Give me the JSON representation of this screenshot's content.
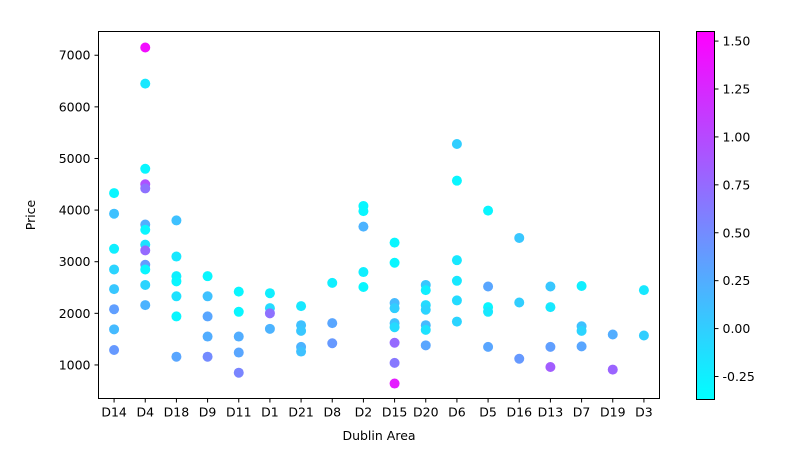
{
  "chart_data": {
    "type": "scatter",
    "title": "",
    "xlabel": "Dublin Area",
    "ylabel": "Price",
    "categories": [
      "D14",
      "D4",
      "D18",
      "D9",
      "D11",
      "D1",
      "D21",
      "D8",
      "D2",
      "D15",
      "D20",
      "D6",
      "D5",
      "D16",
      "D13",
      "D7",
      "D19",
      "D3"
    ],
    "yticks": [
      1000,
      2000,
      3000,
      4000,
      5000,
      6000,
      7000
    ],
    "ylim": [
      350,
      7460
    ],
    "grid": false,
    "colorbar": {
      "colormap": "cool",
      "min": -0.37,
      "max": 1.55,
      "ticks": [
        "-0.25",
        "0.00",
        "0.25",
        "0.50",
        "0.75",
        "1.00",
        "1.25",
        "1.50"
      ],
      "tick_values": [
        -0.25,
        0.0,
        0.25,
        0.5,
        0.75,
        1.0,
        1.25,
        1.5
      ]
    },
    "points": [
      {
        "x": "D14",
        "y": 4330,
        "c": -0.3
      },
      {
        "x": "D14",
        "y": 3930,
        "c": 0.1
      },
      {
        "x": "D14",
        "y": 3250,
        "c": -0.25
      },
      {
        "x": "D14",
        "y": 2850,
        "c": -0.05
      },
      {
        "x": "D14",
        "y": 2470,
        "c": 0.05
      },
      {
        "x": "D14",
        "y": 2080,
        "c": 0.35
      },
      {
        "x": "D14",
        "y": 1690,
        "c": 0.15
      },
      {
        "x": "D14",
        "y": 1290,
        "c": 0.4
      },
      {
        "x": "D4",
        "y": 7150,
        "c": 1.45
      },
      {
        "x": "D4",
        "y": 6450,
        "c": -0.2
      },
      {
        "x": "D4",
        "y": 4800,
        "c": -0.3
      },
      {
        "x": "D4",
        "y": 4500,
        "c": 0.95
      },
      {
        "x": "D4",
        "y": 4420,
        "c": 0.7
      },
      {
        "x": "D4",
        "y": 3720,
        "c": 0.25
      },
      {
        "x": "D4",
        "y": 3620,
        "c": -0.3
      },
      {
        "x": "D4",
        "y": 3330,
        "c": -0.15
      },
      {
        "x": "D4",
        "y": 3220,
        "c": 0.75
      },
      {
        "x": "D4",
        "y": 2940,
        "c": 0.4
      },
      {
        "x": "D4",
        "y": 2850,
        "c": -0.3
      },
      {
        "x": "D4",
        "y": 2550,
        "c": -0.05
      },
      {
        "x": "D4",
        "y": 2160,
        "c": 0.2
      },
      {
        "x": "D18",
        "y": 3800,
        "c": 0.1
      },
      {
        "x": "D18",
        "y": 3100,
        "c": -0.2
      },
      {
        "x": "D18",
        "y": 2720,
        "c": -0.25
      },
      {
        "x": "D18",
        "y": 2620,
        "c": -0.3
      },
      {
        "x": "D18",
        "y": 2330,
        "c": -0.15
      },
      {
        "x": "D18",
        "y": 1940,
        "c": -0.3
      },
      {
        "x": "D18",
        "y": 1160,
        "c": 0.3
      },
      {
        "x": "D9",
        "y": 2720,
        "c": -0.3
      },
      {
        "x": "D9",
        "y": 2330,
        "c": 0.1
      },
      {
        "x": "D9",
        "y": 1940,
        "c": 0.3
      },
      {
        "x": "D9",
        "y": 1550,
        "c": 0.25
      },
      {
        "x": "D9",
        "y": 1160,
        "c": 0.5
      },
      {
        "x": "D11",
        "y": 2420,
        "c": -0.3
      },
      {
        "x": "D11",
        "y": 2030,
        "c": -0.3
      },
      {
        "x": "D11",
        "y": 1550,
        "c": 0.25
      },
      {
        "x": "D11",
        "y": 1240,
        "c": 0.3
      },
      {
        "x": "D11",
        "y": 850,
        "c": 0.55
      },
      {
        "x": "D1",
        "y": 2390,
        "c": -0.25
      },
      {
        "x": "D1",
        "y": 2100,
        "c": -0.1
      },
      {
        "x": "D1",
        "y": 2000,
        "c": 0.7
      },
      {
        "x": "D1",
        "y": 1700,
        "c": 0.2
      },
      {
        "x": "D21",
        "y": 2140,
        "c": -0.2
      },
      {
        "x": "D21",
        "y": 1770,
        "c": 0.1
      },
      {
        "x": "D21",
        "y": 1660,
        "c": 0.05
      },
      {
        "x": "D21",
        "y": 1350,
        "c": 0.2
      },
      {
        "x": "D21",
        "y": 1260,
        "c": 0.1
      },
      {
        "x": "D8",
        "y": 2590,
        "c": -0.25
      },
      {
        "x": "D8",
        "y": 1810,
        "c": 0.3
      },
      {
        "x": "D8",
        "y": 1420,
        "c": 0.4
      },
      {
        "x": "D2",
        "y": 4080,
        "c": -0.3
      },
      {
        "x": "D2",
        "y": 3980,
        "c": -0.3
      },
      {
        "x": "D2",
        "y": 3680,
        "c": 0.2
      },
      {
        "x": "D2",
        "y": 2800,
        "c": -0.25
      },
      {
        "x": "D2",
        "y": 2510,
        "c": -0.3
      },
      {
        "x": "D15",
        "y": 3370,
        "c": -0.3
      },
      {
        "x": "D15",
        "y": 2980,
        "c": -0.3
      },
      {
        "x": "D15",
        "y": 2200,
        "c": 0.15
      },
      {
        "x": "D15",
        "y": 2100,
        "c": 0.0
      },
      {
        "x": "D15",
        "y": 1810,
        "c": 0.1
      },
      {
        "x": "D15",
        "y": 1730,
        "c": -0.1
      },
      {
        "x": "D15",
        "y": 1430,
        "c": 0.75
      },
      {
        "x": "D15",
        "y": 1040,
        "c": 0.65
      },
      {
        "x": "D15",
        "y": 640,
        "c": 1.35
      },
      {
        "x": "D20",
        "y": 2550,
        "c": 0.05
      },
      {
        "x": "D20",
        "y": 2450,
        "c": -0.25
      },
      {
        "x": "D20",
        "y": 2160,
        "c": -0.1
      },
      {
        "x": "D20",
        "y": 2070,
        "c": -0.05
      },
      {
        "x": "D20",
        "y": 1770,
        "c": 0.15
      },
      {
        "x": "D20",
        "y": 1680,
        "c": -0.15
      },
      {
        "x": "D20",
        "y": 1380,
        "c": 0.3
      },
      {
        "x": "D6",
        "y": 5280,
        "c": 0.0
      },
      {
        "x": "D6",
        "y": 4570,
        "c": -0.3
      },
      {
        "x": "D6",
        "y": 3030,
        "c": -0.2
      },
      {
        "x": "D6",
        "y": 2630,
        "c": -0.2
      },
      {
        "x": "D6",
        "y": 2250,
        "c": -0.1
      },
      {
        "x": "D6",
        "y": 1840,
        "c": -0.05
      },
      {
        "x": "D5",
        "y": 3990,
        "c": -0.3
      },
      {
        "x": "D5",
        "y": 2520,
        "c": 0.3
      },
      {
        "x": "D5",
        "y": 2120,
        "c": -0.3
      },
      {
        "x": "D5",
        "y": 2030,
        "c": -0.2
      },
      {
        "x": "D5",
        "y": 1350,
        "c": 0.3
      },
      {
        "x": "D16",
        "y": 3460,
        "c": 0.05
      },
      {
        "x": "D16",
        "y": 2210,
        "c": 0.0
      },
      {
        "x": "D16",
        "y": 1120,
        "c": 0.4
      },
      {
        "x": "D13",
        "y": 2520,
        "c": 0.05
      },
      {
        "x": "D13",
        "y": 2120,
        "c": -0.2
      },
      {
        "x": "D13",
        "y": 1350,
        "c": 0.35
      },
      {
        "x": "D13",
        "y": 960,
        "c": 0.85
      },
      {
        "x": "D7",
        "y": 2530,
        "c": -0.25
      },
      {
        "x": "D7",
        "y": 1750,
        "c": 0.1
      },
      {
        "x": "D7",
        "y": 1660,
        "c": -0.05
      },
      {
        "x": "D7",
        "y": 1360,
        "c": 0.3
      },
      {
        "x": "D19",
        "y": 1590,
        "c": 0.25
      },
      {
        "x": "D19",
        "y": 910,
        "c": 0.8
      },
      {
        "x": "D3",
        "y": 2450,
        "c": -0.2
      },
      {
        "x": "D3",
        "y": 1570,
        "c": 0.0
      }
    ]
  }
}
